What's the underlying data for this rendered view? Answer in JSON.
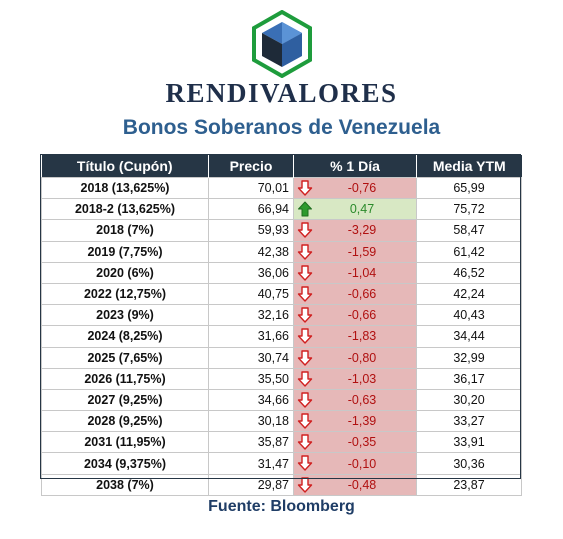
{
  "brand": {
    "logo_icon": "cube-hexagon-logo-icon",
    "name": "RENDIVALORES"
  },
  "subtitle": "Bonos Soberanos de Venezuela",
  "table": {
    "headers": [
      "Título (Cupón)",
      "Precio",
      "% 1 Día",
      "Media YTM"
    ],
    "rows": [
      {
        "titulo": "2018 (13,625%)",
        "precio": "70,01",
        "cambio": "-0,76",
        "dir": "down",
        "ytm": "65,99"
      },
      {
        "titulo": "2018-2 (13,625%)",
        "precio": "66,94",
        "cambio": "0,47",
        "dir": "up",
        "ytm": "75,72"
      },
      {
        "titulo": "2018 (7%)",
        "precio": "59,93",
        "cambio": "-3,29",
        "dir": "down",
        "ytm": "58,47"
      },
      {
        "titulo": "2019 (7,75%)",
        "precio": "42,38",
        "cambio": "-1,59",
        "dir": "down",
        "ytm": "61,42"
      },
      {
        "titulo": "2020 (6%)",
        "precio": "36,06",
        "cambio": "-1,04",
        "dir": "down",
        "ytm": "46,52"
      },
      {
        "titulo": "2022 (12,75%)",
        "precio": "40,75",
        "cambio": "-0,66",
        "dir": "down",
        "ytm": "42,24"
      },
      {
        "titulo": "2023 (9%)",
        "precio": "32,16",
        "cambio": "-0,66",
        "dir": "down",
        "ytm": "40,43"
      },
      {
        "titulo": "2024 (8,25%)",
        "precio": "31,66",
        "cambio": "-1,83",
        "dir": "down",
        "ytm": "34,44"
      },
      {
        "titulo": "2025 (7,65%)",
        "precio": "30,74",
        "cambio": "-0,80",
        "dir": "down",
        "ytm": "32,99"
      },
      {
        "titulo": "2026 (11,75%)",
        "precio": "35,50",
        "cambio": "-1,03",
        "dir": "down",
        "ytm": "36,17"
      },
      {
        "titulo": "2027 (9,25%)",
        "precio": "34,66",
        "cambio": "-0,63",
        "dir": "down",
        "ytm": "30,20"
      },
      {
        "titulo": "2028 (9,25%)",
        "precio": "30,18",
        "cambio": "-1,39",
        "dir": "down",
        "ytm": "33,27"
      },
      {
        "titulo": "2031 (11,95%)",
        "precio": "35,87",
        "cambio": "-0,35",
        "dir": "down",
        "ytm": "33,91"
      },
      {
        "titulo": "2034 (9,375%)",
        "precio": "31,47",
        "cambio": "-0,10",
        "dir": "down",
        "ytm": "30,36"
      },
      {
        "titulo": "2038 (7%)",
        "precio": "29,87",
        "cambio": "-0,48",
        "dir": "down",
        "ytm": "23,87"
      }
    ]
  },
  "source": "Fuente: Bloomberg",
  "colors": {
    "header_bg": "#263645",
    "negative_bg": "#e6b8b8",
    "negative_text": "#b01010",
    "positive_bg": "#d8e8c4",
    "positive_text": "#2a8a2a",
    "subtitle": "#2e5f8f"
  }
}
